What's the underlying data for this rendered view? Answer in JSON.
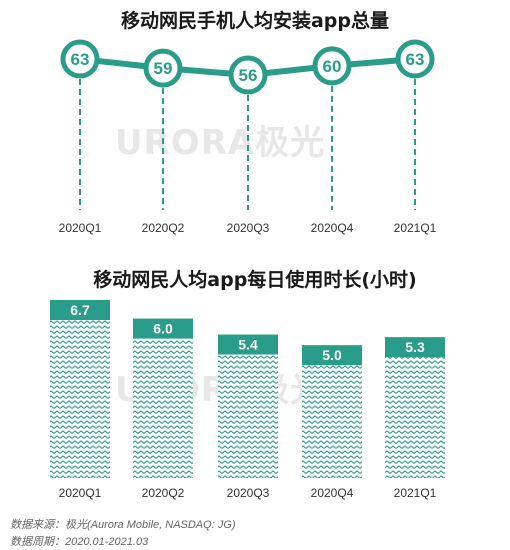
{
  "chart_data": [
    {
      "type": "line",
      "title": "移动网民手机人均安装app总量",
      "categories": [
        "2020Q1",
        "2020Q2",
        "2020Q3",
        "2020Q4",
        "2021Q1"
      ],
      "values": [
        63,
        59,
        56,
        60,
        63
      ],
      "color": "#2a9d8a"
    },
    {
      "type": "bar",
      "title": "移动网民人均app每日使用时长(小时)",
      "categories": [
        "2020Q1",
        "2020Q2",
        "2020Q3",
        "2020Q4",
        "2021Q1"
      ],
      "values": [
        6.7,
        6.0,
        5.4,
        5.0,
        5.3
      ],
      "value_labels": [
        "6.7",
        "6.0",
        "5.4",
        "5.0",
        "5.3"
      ],
      "color": "#2a9d8a"
    }
  ],
  "watermark": "URORA极光",
  "footer": {
    "source": "数据来源：极光(Aurora Mobile, NASDAQ: JG)",
    "period": "数据周期：2020.01-2021.03"
  }
}
